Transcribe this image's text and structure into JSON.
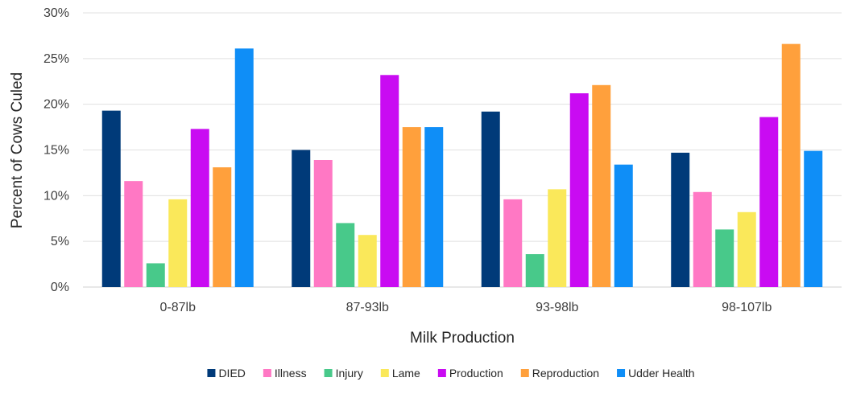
{
  "chart_data": {
    "type": "bar",
    "title": "",
    "xlabel": "Milk Production",
    "ylabel": "Percent of Cows Culed",
    "categories": [
      "0-87lb",
      "87-93lb",
      "93-98lb",
      "98-107lb"
    ],
    "ylim": [
      0,
      30
    ],
    "yticks": [
      0,
      5,
      10,
      15,
      20,
      25,
      30
    ],
    "ytick_labels": [
      "0%",
      "5%",
      "10%",
      "15%",
      "20%",
      "25%",
      "30%"
    ],
    "grid": true,
    "legend_position": "bottom",
    "series": [
      {
        "name": "DIED",
        "color": "#003a79",
        "values": [
          19.3,
          15.0,
          19.2,
          14.7
        ]
      },
      {
        "name": "Illness",
        "color": "#ff78c4",
        "values": [
          11.6,
          13.9,
          9.6,
          10.4
        ]
      },
      {
        "name": "Injury",
        "color": "#48c98a",
        "values": [
          2.6,
          7.0,
          3.6,
          6.3
        ]
      },
      {
        "name": "Lame",
        "color": "#fae85a",
        "values": [
          9.6,
          5.7,
          10.7,
          8.2
        ]
      },
      {
        "name": "Production",
        "color": "#c90bf2",
        "values": [
          17.3,
          23.2,
          21.2,
          18.6
        ]
      },
      {
        "name": "Reproduction",
        "color": "#ffa03c",
        "values": [
          13.1,
          17.5,
          22.1,
          26.6
        ]
      },
      {
        "name": "Udder Health",
        "color": "#0f8ef7",
        "values": [
          26.1,
          17.5,
          13.4,
          14.9
        ]
      }
    ]
  }
}
